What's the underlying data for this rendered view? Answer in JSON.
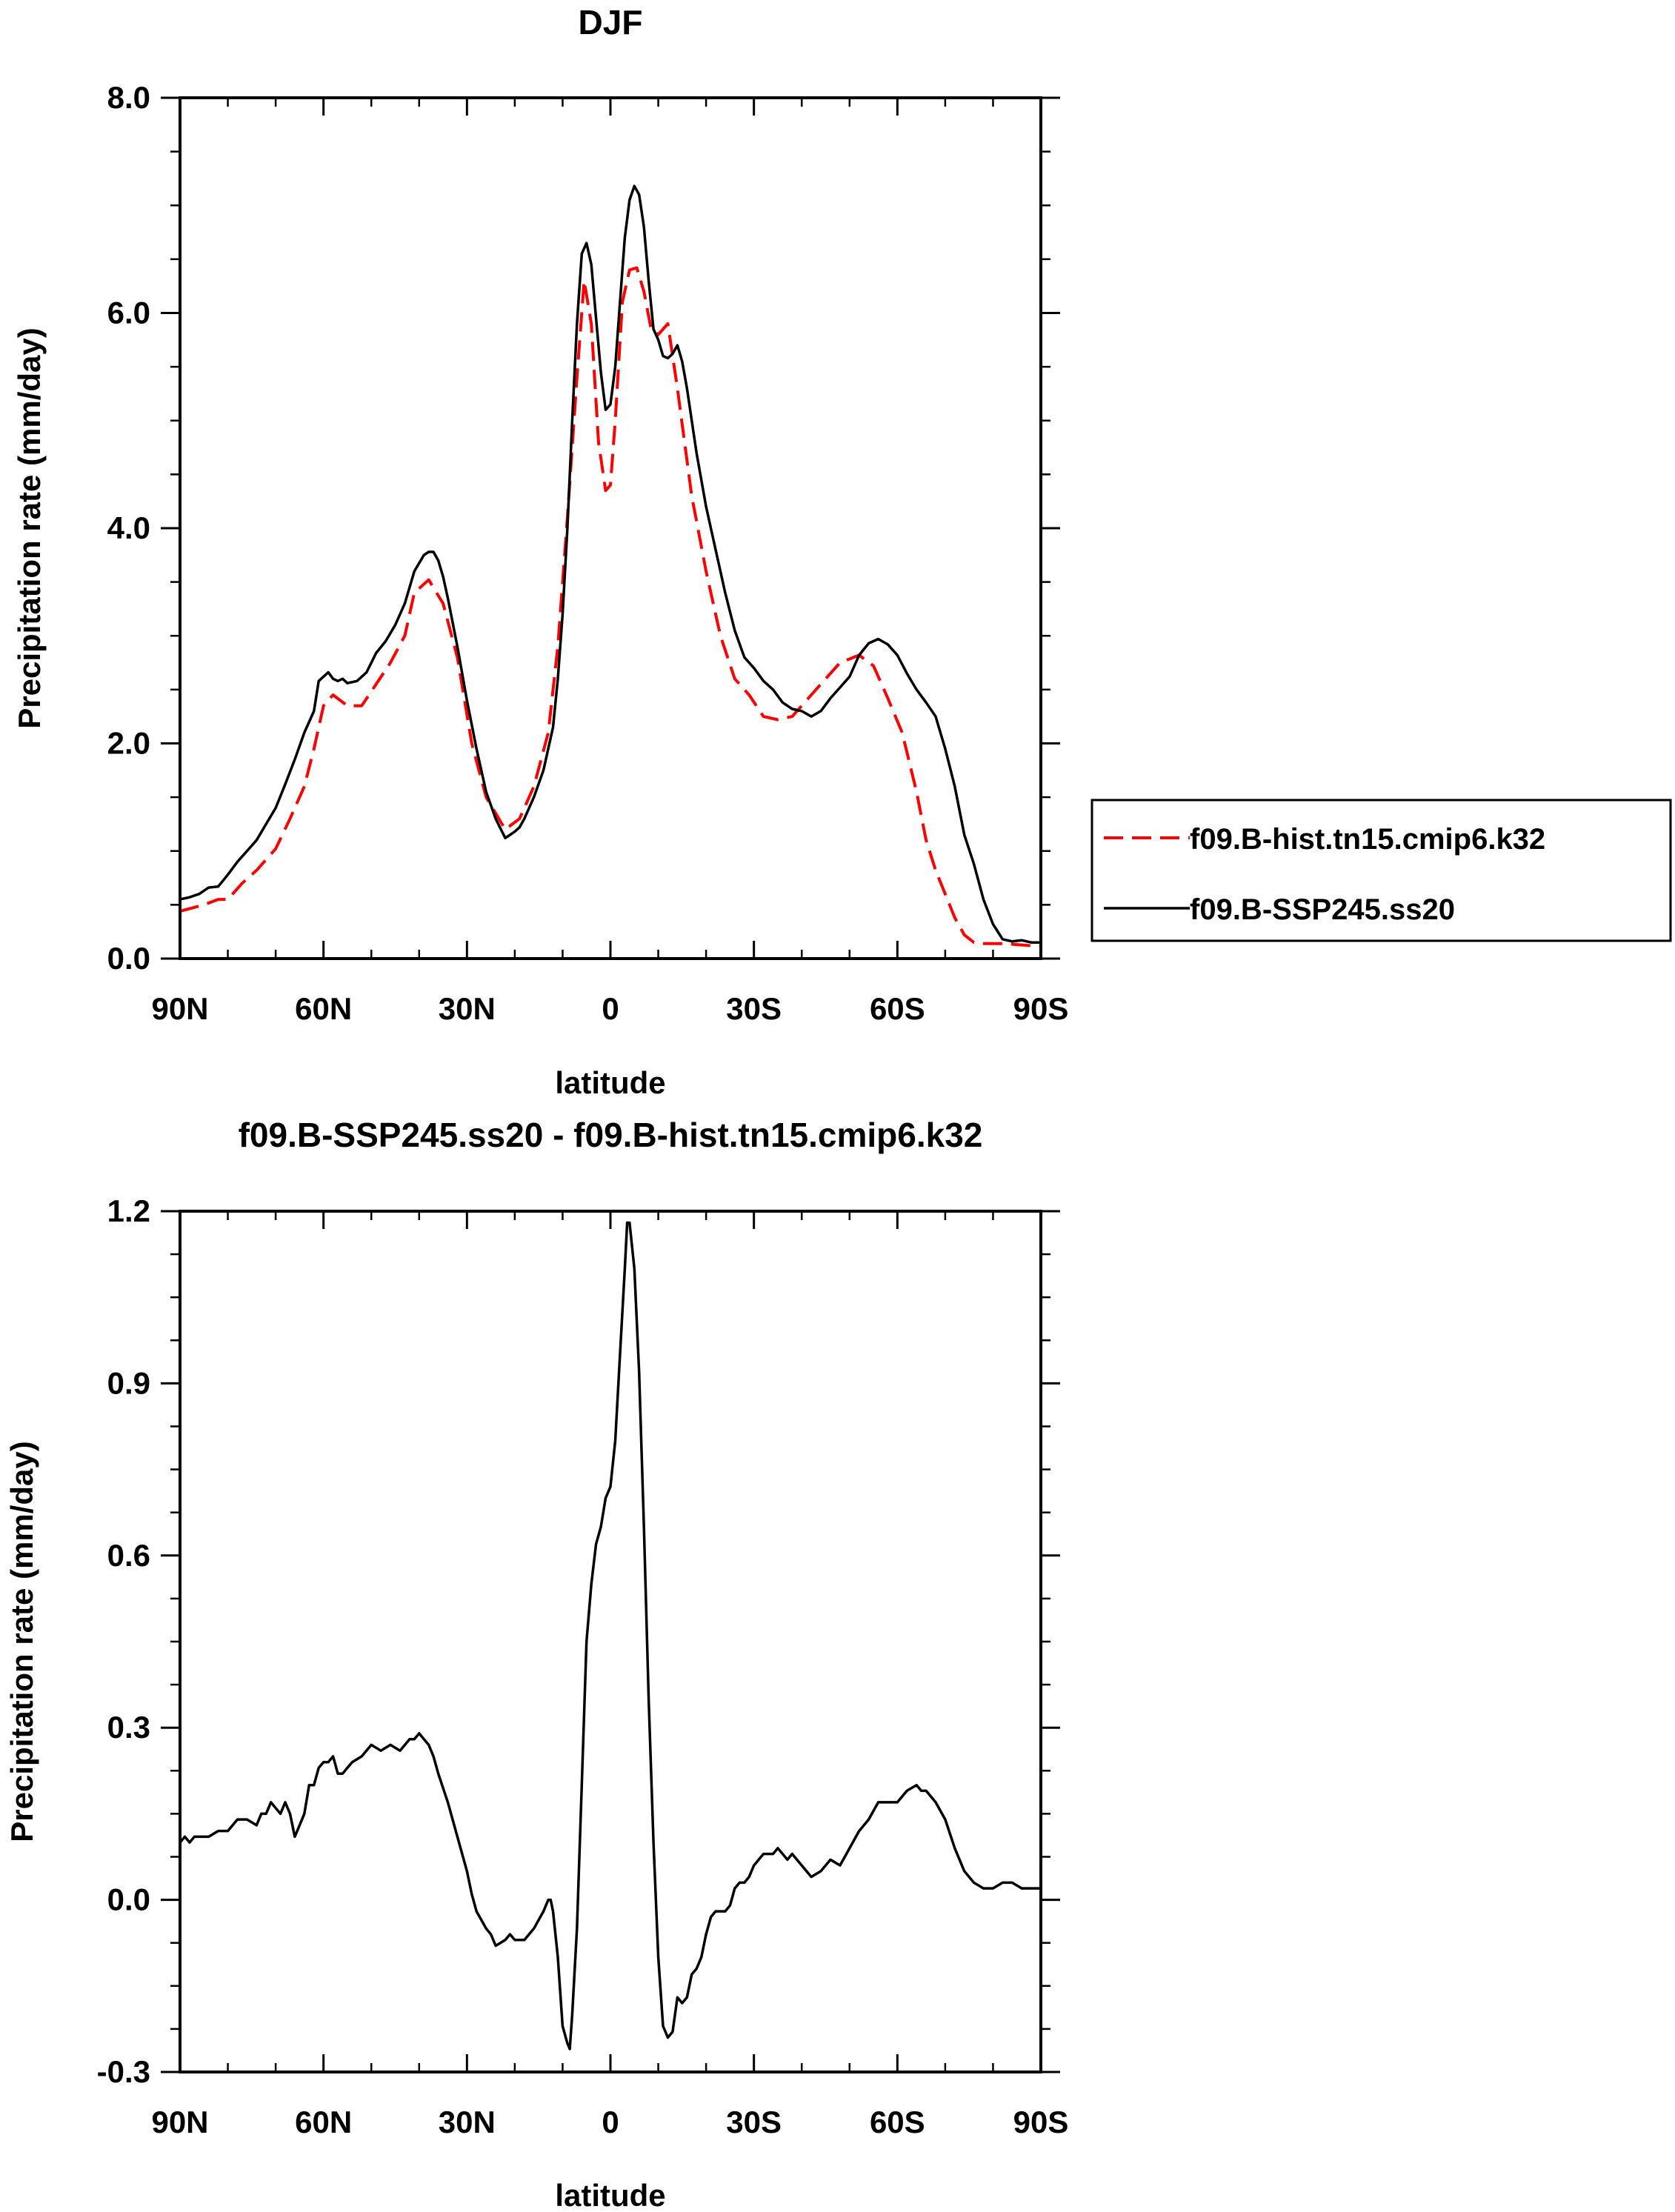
{
  "chart_data": [
    {
      "type": "line",
      "title": "DJF",
      "xlabel": "latitude",
      "ylabel": "Precipitation rate (mm/day)",
      "xlim": [
        -90,
        90
      ],
      "ylim": [
        0,
        8
      ],
      "x_tick_values": [
        -90,
        -60,
        -30,
        0,
        30,
        60,
        90
      ],
      "x_tick_labels": [
        "90N",
        "60N",
        "30N",
        "0",
        "30S",
        "60S",
        "90S"
      ],
      "y_tick_values": [
        0,
        2,
        4,
        6,
        8
      ],
      "y_tick_labels": [
        "0.0",
        "2.0",
        "4.0",
        "6.0",
        "8.0"
      ],
      "legend": [
        "f09.B-hist.tn15.cmip6.k32",
        "f09.B-SSP245.ss20"
      ],
      "series": [
        {
          "name": "f09.B-hist.tn15.cmip6.k32",
          "color": "#ff0000",
          "dash": "dashed",
          "x": [
            -90,
            -85,
            -82,
            -80,
            -77,
            -74,
            -70,
            -67,
            -64,
            -62,
            -60,
            -58,
            -55,
            -52,
            -49,
            -46,
            -43,
            -41,
            -38,
            -35,
            -32,
            -29,
            -26,
            -22,
            -19,
            -16,
            -13,
            -11,
            -9,
            -7,
            -5.5,
            -4,
            -2.5,
            -1,
            0,
            1,
            2.5,
            4,
            5.5,
            7,
            8.5,
            10,
            12,
            14,
            17,
            20,
            23,
            26,
            29,
            32,
            35,
            38,
            40,
            42,
            45,
            48,
            52,
            55,
            58,
            61,
            64,
            66,
            68,
            70,
            72,
            74,
            76,
            78,
            80,
            82,
            85,
            88,
            90
          ],
          "values": [
            0.44,
            0.5,
            0.55,
            0.55,
            0.7,
            0.82,
            1.02,
            1.3,
            1.6,
            1.95,
            2.35,
            2.45,
            2.35,
            2.35,
            2.55,
            2.75,
            3.0,
            3.4,
            3.52,
            3.3,
            2.8,
            2.0,
            1.5,
            1.2,
            1.3,
            1.6,
            2.1,
            2.9,
            4.1,
            5.4,
            6.3,
            5.9,
            4.8,
            4.35,
            4.4,
            5.0,
            6.1,
            6.4,
            6.42,
            6.2,
            5.85,
            5.8,
            5.9,
            5.3,
            4.3,
            3.6,
            3.0,
            2.6,
            2.45,
            2.25,
            2.22,
            2.25,
            2.35,
            2.45,
            2.6,
            2.75,
            2.82,
            2.72,
            2.42,
            2.1,
            1.55,
            1.1,
            0.82,
            0.6,
            0.38,
            0.22,
            0.15,
            0.14,
            0.14,
            0.14,
            0.13,
            0.12,
            0.12
          ]
        },
        {
          "name": "f09.B-SSP245.ss20",
          "color": "#000000",
          "dash": "solid",
          "x": [
            -90,
            -88,
            -86,
            -84,
            -82,
            -80,
            -78,
            -76,
            -74,
            -72,
            -70,
            -68,
            -66,
            -64,
            -62,
            -61,
            -60,
            -59,
            -58,
            -57,
            -56,
            -55,
            -53,
            -51,
            -49,
            -47,
            -45,
            -43,
            -41,
            -39,
            -38,
            -37,
            -36,
            -35,
            -34,
            -32,
            -30,
            -28,
            -26,
            -24,
            -22,
            -21,
            -20,
            -19,
            -18,
            -16,
            -14,
            -12,
            -11,
            -10,
            -9,
            -8,
            -7,
            -6,
            -5,
            -4,
            -3,
            -2,
            -1,
            0,
            1,
            2,
            3,
            4,
            5,
            6,
            7,
            8,
            9,
            10,
            11,
            12,
            13,
            14,
            15,
            16,
            18,
            20,
            22,
            24,
            26,
            28,
            30,
            32,
            34,
            36,
            38,
            40,
            42,
            44,
            46,
            48,
            50,
            52,
            54,
            56,
            58,
            60,
            62,
            64,
            66,
            68,
            70,
            72,
            74,
            76,
            78,
            80,
            82,
            84,
            86,
            88,
            90
          ],
          "values": [
            0.55,
            0.57,
            0.6,
            0.66,
            0.67,
            0.78,
            0.9,
            1.0,
            1.1,
            1.25,
            1.4,
            1.62,
            1.85,
            2.1,
            2.3,
            2.58,
            2.62,
            2.66,
            2.6,
            2.58,
            2.6,
            2.56,
            2.58,
            2.66,
            2.84,
            2.95,
            3.1,
            3.3,
            3.6,
            3.75,
            3.78,
            3.78,
            3.7,
            3.55,
            3.35,
            2.9,
            2.4,
            1.95,
            1.55,
            1.3,
            1.12,
            1.15,
            1.18,
            1.22,
            1.3,
            1.5,
            1.75,
            2.15,
            2.6,
            3.2,
            4.0,
            5.0,
            5.9,
            6.55,
            6.65,
            6.45,
            5.95,
            5.45,
            5.1,
            5.15,
            5.5,
            6.1,
            6.7,
            7.05,
            7.18,
            7.1,
            6.8,
            6.3,
            5.85,
            5.75,
            5.6,
            5.58,
            5.62,
            5.7,
            5.55,
            5.3,
            4.7,
            4.2,
            3.8,
            3.4,
            3.05,
            2.8,
            2.7,
            2.58,
            2.5,
            2.38,
            2.32,
            2.3,
            2.25,
            2.3,
            2.42,
            2.52,
            2.62,
            2.82,
            2.93,
            2.97,
            2.92,
            2.82,
            2.65,
            2.5,
            2.38,
            2.25,
            1.95,
            1.6,
            1.15,
            0.88,
            0.55,
            0.32,
            0.18,
            0.16,
            0.17,
            0.15,
            0.15
          ]
        }
      ]
    },
    {
      "type": "line",
      "title": "f09.B-SSP245.ss20 - f09.B-hist.tn15.cmip6.k32",
      "xlabel": "latitude",
      "ylabel": "Precipitation rate (mm/day)",
      "xlim": [
        -90,
        90
      ],
      "ylim": [
        -0.3,
        1.2
      ],
      "x_tick_values": [
        -90,
        -60,
        -30,
        0,
        30,
        60,
        90
      ],
      "x_tick_labels": [
        "90N",
        "60N",
        "30N",
        "0",
        "30S",
        "60S",
        "90S"
      ],
      "y_tick_values": [
        -0.3,
        0,
        0.3,
        0.6,
        0.9,
        1.2
      ],
      "y_tick_labels": [
        "-0.3",
        "0.0",
        "0.3",
        "0.6",
        "0.9",
        "1.2"
      ],
      "series": [
        {
          "name": "f09.B-SSP245.ss20 - f09.B-hist.tn15.cmip6.k32",
          "color": "#000000",
          "dash": "solid",
          "x": [
            -90,
            -89,
            -88,
            -87,
            -86,
            -84,
            -82,
            -80,
            -78,
            -76,
            -74,
            -73,
            -72,
            -71,
            -70,
            -69,
            -68,
            -67,
            -66,
            -65,
            -64,
            -63,
            -62,
            -61,
            -60,
            -59,
            -58,
            -57,
            -56,
            -55,
            -54,
            -52,
            -50,
            -48,
            -46,
            -44,
            -42,
            -41,
            -40,
            -39,
            -38,
            -37,
            -36,
            -34,
            -32,
            -30,
            -29,
            -28,
            -26,
            -25,
            -24,
            -22,
            -21,
            -20,
            -19,
            -18,
            -16,
            -14,
            -13,
            -12.5,
            -12,
            -11,
            -10,
            -9,
            -8.5,
            -8,
            -7,
            -6,
            -5,
            -4,
            -3,
            -2,
            -1,
            0,
            1,
            2,
            3,
            3.5,
            4,
            5,
            6,
            7,
            8,
            9,
            10,
            11,
            12,
            13,
            14,
            15,
            16,
            17,
            18,
            19,
            20,
            21,
            22,
            23,
            24,
            25,
            26,
            27,
            28,
            29,
            30,
            31,
            32,
            33,
            34,
            35,
            36,
            37,
            38,
            40,
            42,
            44,
            46,
            48,
            50,
            52,
            54,
            56,
            58,
            60,
            62,
            64,
            65,
            66,
            68,
            70,
            72,
            74,
            76,
            78,
            80,
            82,
            84,
            86,
            88,
            90
          ],
          "values": [
            0.1,
            0.11,
            0.1,
            0.11,
            0.11,
            0.11,
            0.12,
            0.12,
            0.14,
            0.14,
            0.13,
            0.15,
            0.15,
            0.17,
            0.16,
            0.15,
            0.17,
            0.15,
            0.11,
            0.13,
            0.15,
            0.2,
            0.2,
            0.23,
            0.24,
            0.24,
            0.25,
            0.22,
            0.22,
            0.23,
            0.24,
            0.25,
            0.27,
            0.26,
            0.27,
            0.26,
            0.28,
            0.28,
            0.29,
            0.28,
            0.27,
            0.25,
            0.22,
            0.17,
            0.11,
            0.05,
            0.01,
            -0.02,
            -0.05,
            -0.06,
            -0.08,
            -0.07,
            -0.06,
            -0.07,
            -0.07,
            -0.07,
            -0.05,
            -0.02,
            0.0,
            0.0,
            -0.02,
            -0.1,
            -0.22,
            -0.25,
            -0.26,
            -0.2,
            -0.05,
            0.2,
            0.45,
            0.55,
            0.62,
            0.65,
            0.7,
            0.72,
            0.8,
            0.95,
            1.1,
            1.18,
            1.18,
            1.1,
            0.92,
            0.65,
            0.35,
            0.1,
            -0.1,
            -0.22,
            -0.24,
            -0.23,
            -0.17,
            -0.18,
            -0.17,
            -0.13,
            -0.12,
            -0.1,
            -0.06,
            -0.03,
            -0.02,
            -0.02,
            -0.02,
            -0.01,
            0.02,
            0.03,
            0.03,
            0.04,
            0.06,
            0.07,
            0.08,
            0.08,
            0.08,
            0.09,
            0.08,
            0.07,
            0.08,
            0.06,
            0.04,
            0.05,
            0.07,
            0.06,
            0.09,
            0.12,
            0.14,
            0.17,
            0.17,
            0.17,
            0.19,
            0.2,
            0.19,
            0.19,
            0.17,
            0.14,
            0.09,
            0.05,
            0.03,
            0.02,
            0.02,
            0.03,
            0.03,
            0.02,
            0.02,
            0.02
          ]
        }
      ]
    }
  ]
}
